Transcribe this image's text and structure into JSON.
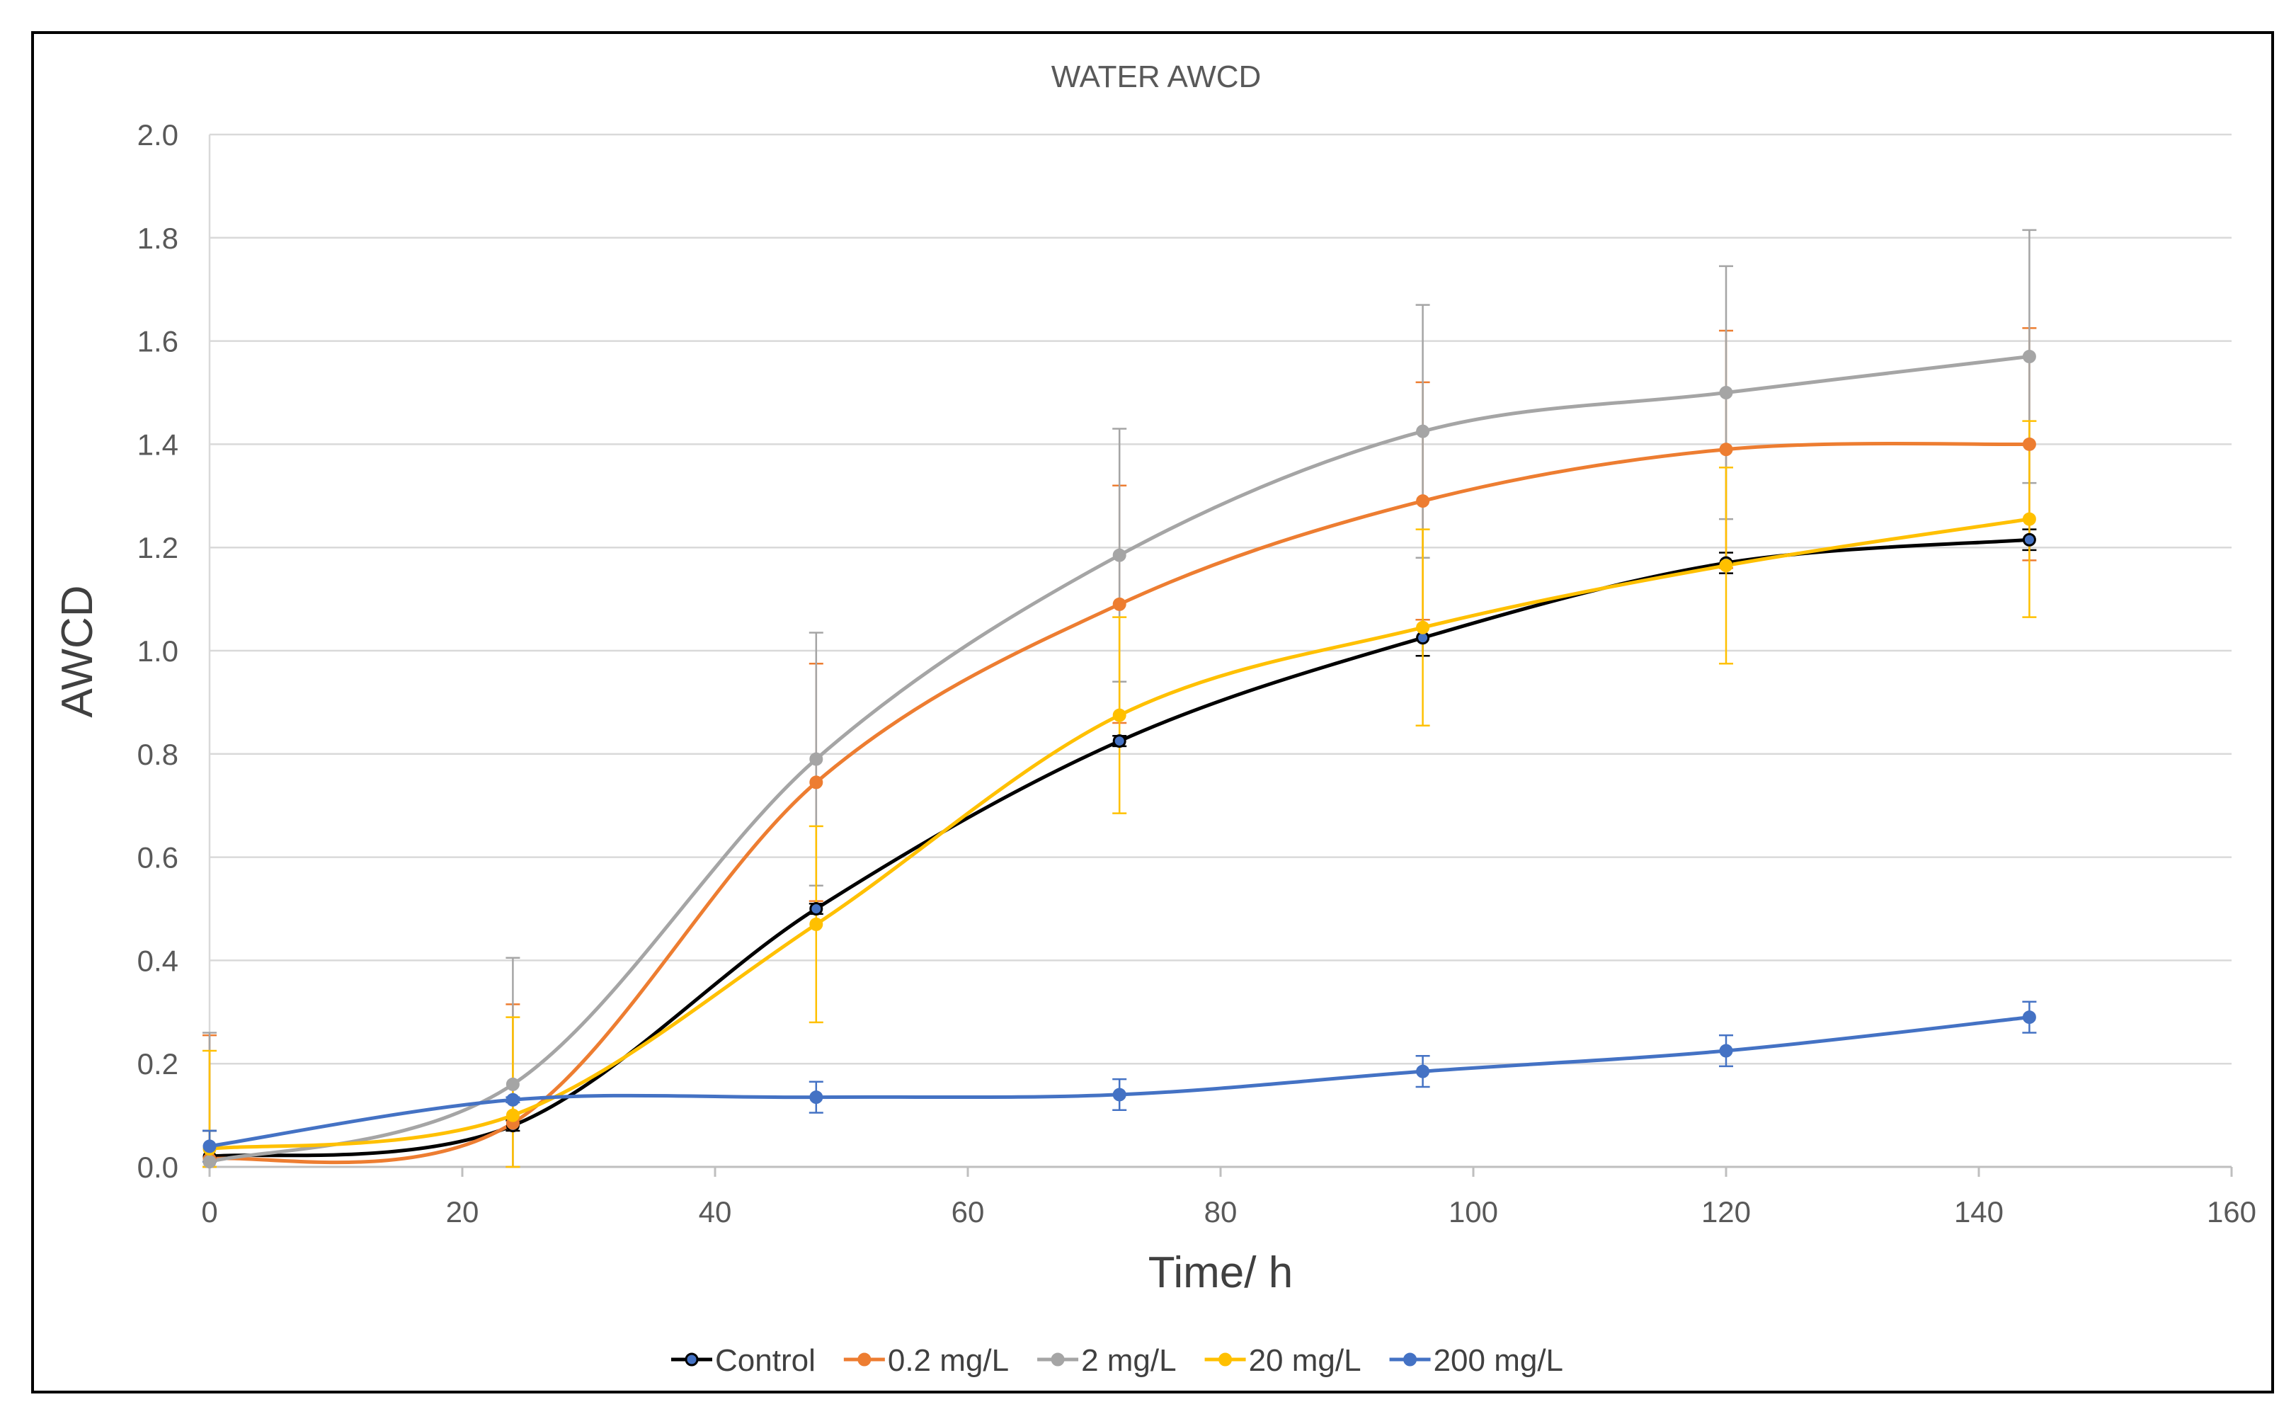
{
  "chart_data": {
    "type": "line",
    "title": "WATER AWCD",
    "xlabel": "Time/ h",
    "ylabel": "AWCD",
    "xlim": [
      0,
      160
    ],
    "ylim": [
      0,
      2.0
    ],
    "xticks": [
      0,
      20,
      40,
      60,
      80,
      100,
      120,
      140,
      160
    ],
    "yticks": [
      0.0,
      0.2,
      0.4,
      0.6,
      0.8,
      1.0,
      1.2,
      1.4,
      1.6,
      1.8,
      2.0
    ],
    "ytick_labels": [
      "0.0",
      "0.2",
      "0.4",
      "0.6",
      "0.8",
      "1.0",
      "1.2",
      "1.4",
      "1.6",
      "1.8",
      "2.0"
    ],
    "grid": true,
    "legend_position": "bottom",
    "x": [
      0,
      24,
      48,
      72,
      96,
      120,
      144
    ],
    "series": [
      {
        "name": "Control",
        "color": "#000000",
        "marker_fill": "#4472C4",
        "values": [
          0.02,
          0.08,
          0.5,
          0.825,
          1.025,
          1.17,
          1.215
        ],
        "errors": [
          0.05,
          0.01,
          0.01,
          0.01,
          0.035,
          0.02,
          0.02
        ]
      },
      {
        "name": "0.2 mg/L",
        "color": "#ED7D31",
        "marker_fill": "#ED7D31",
        "values": [
          0.015,
          0.085,
          0.745,
          1.09,
          1.29,
          1.39,
          1.4
        ],
        "errors": [
          0.24,
          0.23,
          0.23,
          0.23,
          0.23,
          0.23,
          0.225
        ]
      },
      {
        "name": "2 mg/L",
        "color": "#A5A5A5",
        "marker_fill": "#A5A5A5",
        "values": [
          0.01,
          0.16,
          0.79,
          1.185,
          1.425,
          1.5,
          1.57
        ],
        "errors": [
          0.25,
          0.245,
          0.245,
          0.245,
          0.245,
          0.245,
          0.245
        ]
      },
      {
        "name": "20 mg/L",
        "color": "#FFC000",
        "marker_fill": "#FFC000",
        "values": [
          0.035,
          0.1,
          0.47,
          0.875,
          1.045,
          1.165,
          1.255
        ],
        "errors": [
          0.19,
          0.19,
          0.19,
          0.19,
          0.19,
          0.19,
          0.19
        ]
      },
      {
        "name": "200 mg/L",
        "color": "#4472C4",
        "marker_fill": "#4472C4",
        "values": [
          0.04,
          0.13,
          0.135,
          0.14,
          0.185,
          0.225,
          0.29
        ],
        "errors": [
          0.03,
          0.005,
          0.03,
          0.03,
          0.03,
          0.03,
          0.03
        ]
      }
    ]
  }
}
